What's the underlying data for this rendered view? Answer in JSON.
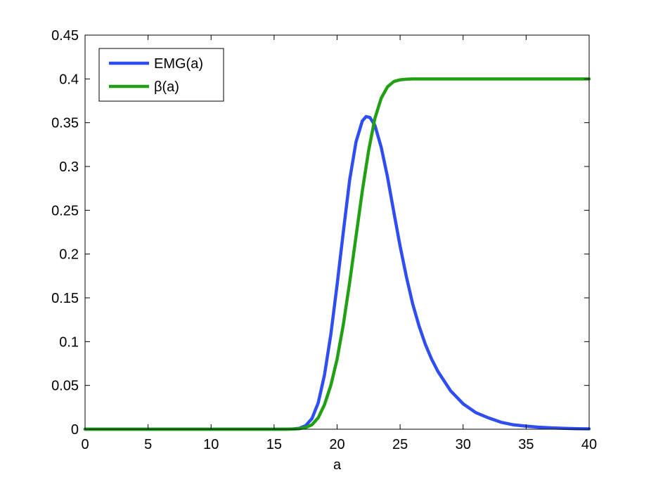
{
  "chart_data": {
    "type": "line",
    "title": "",
    "xlabel": "a",
    "ylabel": "",
    "xlim": [
      0,
      40
    ],
    "ylim": [
      0,
      0.45
    ],
    "xticks": [
      0,
      5,
      10,
      15,
      20,
      25,
      30,
      35,
      40
    ],
    "xtick_labels": [
      "0",
      "5",
      "10",
      "15",
      "20",
      "25",
      "30",
      "35",
      "40"
    ],
    "yticks": [
      0,
      0.05,
      0.1,
      0.15,
      0.2,
      0.25,
      0.3,
      0.35,
      0.4,
      0.45
    ],
    "ytick_labels": [
      "0",
      "0.05",
      "0.1",
      "0.15",
      "0.2",
      "0.25",
      "0.3",
      "0.35",
      "0.4",
      "0.45"
    ],
    "grid": false,
    "legend_position": "top-left",
    "series": [
      {
        "name": "EMG(a)",
        "color": "#2e4ef2",
        "x": [
          0,
          5,
          10,
          15,
          16,
          16.5,
          17,
          17.5,
          18,
          18.5,
          19,
          19.5,
          20,
          20.5,
          21,
          21.5,
          22,
          22.3,
          22.6,
          23,
          23.5,
          24,
          24.5,
          25,
          25.5,
          26,
          26.5,
          27,
          27.5,
          28,
          29,
          30,
          31,
          32,
          33,
          34,
          35,
          36,
          37,
          38,
          39,
          40
        ],
        "y": [
          0,
          0,
          0,
          0,
          0,
          0.0003,
          0.001,
          0.004,
          0.012,
          0.03,
          0.062,
          0.108,
          0.165,
          0.226,
          0.285,
          0.328,
          0.352,
          0.357,
          0.356,
          0.347,
          0.322,
          0.288,
          0.248,
          0.209,
          0.174,
          0.143,
          0.118,
          0.097,
          0.08,
          0.066,
          0.044,
          0.029,
          0.019,
          0.013,
          0.008,
          0.005,
          0.0035,
          0.0023,
          0.0015,
          0.001,
          0.0006,
          0.0004
        ]
      },
      {
        "name": "β(a)",
        "color": "#22a014",
        "x": [
          0,
          5,
          10,
          15,
          16,
          16.5,
          17,
          17.5,
          18,
          18.5,
          19,
          19.5,
          20,
          20.5,
          21,
          21.5,
          22,
          22.5,
          23,
          23.5,
          24,
          24.5,
          25,
          25.5,
          26,
          26.5,
          27,
          28,
          30,
          35,
          40
        ],
        "y": [
          0,
          0,
          0,
          0,
          0,
          0.0002,
          0.0006,
          0.002,
          0.005,
          0.013,
          0.028,
          0.05,
          0.08,
          0.12,
          0.168,
          0.22,
          0.272,
          0.318,
          0.355,
          0.378,
          0.391,
          0.397,
          0.399,
          0.3997,
          0.4,
          0.4,
          0.4,
          0.4,
          0.4,
          0.4,
          0.4
        ]
      }
    ]
  }
}
